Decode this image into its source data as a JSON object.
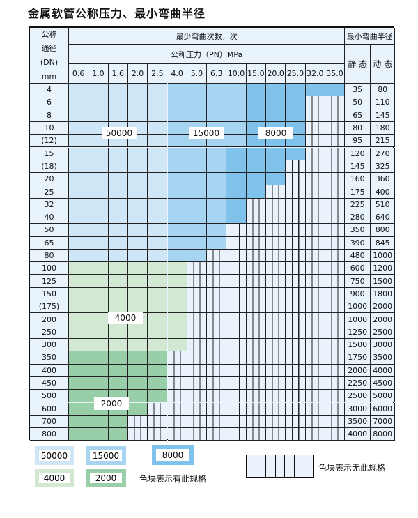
{
  "title": "金属软管公称压力、最小弯曲半径",
  "header": {
    "dn_label": [
      "公称",
      "通径",
      "(DN)",
      "mm"
    ],
    "cycles_label": "最少弯曲次数，次",
    "pressure_label": "公称压力（PN）MPa",
    "radius_label": "最小弯曲半径",
    "static_label": "静 态",
    "dynamic_label": "动 态",
    "pressures": [
      "0.6",
      "1.0",
      "1.6",
      "2.0",
      "2.5",
      "4.0",
      "5.0",
      "6.3",
      "10.0",
      "15.0",
      "20.0",
      "25.0",
      "32.0",
      "35.0"
    ]
  },
  "rows": [
    {
      "dn": "4",
      "static": "35",
      "dynamic": "80",
      "available": 14
    },
    {
      "dn": "6",
      "static": "50",
      "dynamic": "110",
      "available": 12
    },
    {
      "dn": "8",
      "static": "65",
      "dynamic": "145",
      "available": 12
    },
    {
      "dn": "10",
      "static": "80",
      "dynamic": "180",
      "available": 12
    },
    {
      "dn": "(12)",
      "static": "95",
      "dynamic": "215",
      "available": 12
    },
    {
      "dn": "15",
      "static": "120",
      "dynamic": "270",
      "available": 12
    },
    {
      "dn": "(18)",
      "static": "145",
      "dynamic": "325",
      "available": 11
    },
    {
      "dn": "20",
      "static": "160",
      "dynamic": "360",
      "available": 11
    },
    {
      "dn": "25",
      "static": "175",
      "dynamic": "400",
      "available": 10
    },
    {
      "dn": "32",
      "static": "225",
      "dynamic": "510",
      "available": 9
    },
    {
      "dn": "40",
      "static": "280",
      "dynamic": "640",
      "available": 9
    },
    {
      "dn": "50",
      "static": "350",
      "dynamic": "800",
      "available": 8
    },
    {
      "dn": "65",
      "static": "390",
      "dynamic": "845",
      "available": 8
    },
    {
      "dn": "80",
      "static": "480",
      "dynamic": "1000",
      "available": 7
    },
    {
      "dn": "100",
      "static": "600",
      "dynamic": "1200",
      "available": 6
    },
    {
      "dn": "125",
      "static": "750",
      "dynamic": "1500",
      "available": 6
    },
    {
      "dn": "150",
      "static": "900",
      "dynamic": "1800",
      "available": 6
    },
    {
      "dn": "(175)",
      "static": "1000",
      "dynamic": "2000",
      "available": 6
    },
    {
      "dn": "200",
      "static": "1000",
      "dynamic": "2000",
      "available": 6
    },
    {
      "dn": "250",
      "static": "1250",
      "dynamic": "2500",
      "available": 6
    },
    {
      "dn": "300",
      "static": "1500",
      "dynamic": "3000",
      "available": 6
    },
    {
      "dn": "350",
      "static": "1750",
      "dynamic": "3500",
      "available": 5
    },
    {
      "dn": "400",
      "static": "2000",
      "dynamic": "4000",
      "available": 5
    },
    {
      "dn": "450",
      "static": "2250",
      "dynamic": "4500",
      "available": 5
    },
    {
      "dn": "500",
      "static": "2500",
      "dynamic": "5000",
      "available": 5
    },
    {
      "dn": "600",
      "static": "3000",
      "dynamic": "6000",
      "available": 4
    },
    {
      "dn": "700",
      "static": "3500",
      "dynamic": "7000",
      "available": 3
    },
    {
      "dn": "800",
      "static": "4000",
      "dynamic": "8000",
      "available": 3
    }
  ],
  "regions": {
    "c50000": {
      "label": "50000",
      "color": "#cfe6f6"
    },
    "c15000": {
      "label": "15000",
      "color": "#a6d4f1"
    },
    "c8000": {
      "label": "8000",
      "color": "#7fc3ec"
    },
    "c4000": {
      "label": "4000",
      "color": "#d3e8d3"
    },
    "c2000": {
      "label": "2000",
      "color": "#98cfa8"
    },
    "none_color": "#eaf3fb"
  },
  "legend": {
    "available_note": "色块表示有此规格",
    "unavailable_note": "色块表示无此规格"
  }
}
